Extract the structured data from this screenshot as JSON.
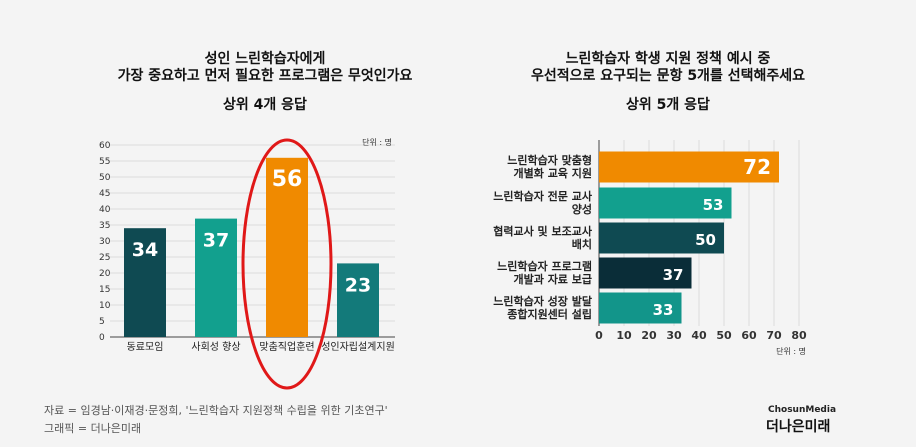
{
  "chart_data": [
    {
      "type": "bar",
      "title": [
        "성인 느린학습자에게",
        "가장 중요하고 먼저 필요한 프로그램은 무엇인가요"
      ],
      "subtitle": "상위 4개 응답",
      "unit_label": "단위 : 명",
      "categories": [
        "동료모임",
        "사회성 향상",
        "맞춤직업훈련",
        "성인자립설계지원"
      ],
      "values": [
        34,
        37,
        56,
        23
      ],
      "colors": [
        "#0f4a52",
        "#12a08e",
        "#f08a00",
        "#137a7a"
      ],
      "highlight": "맞춤직업훈련",
      "ylim": [
        0,
        60
      ],
      "yticks": [
        0,
        5,
        10,
        15,
        20,
        25,
        30,
        35,
        40,
        45,
        50,
        55,
        60
      ],
      "grid": true
    },
    {
      "type": "bar",
      "orientation": "horizontal",
      "title": [
        "느린학습자 학생 지원 정책 예시 중",
        "우선적으로 요구되는 문항 5개를 선택해주세요"
      ],
      "subtitle": "상위 5개 응답",
      "unit_label": "단위 : 명",
      "categories": [
        [
          "느린학습자 맞춤형",
          "개별화 교육 지원"
        ],
        [
          "느린학습자 전문 교사",
          "양성"
        ],
        [
          "협력교사 및 보조교사",
          "배치"
        ],
        [
          "느린학습자 프로그램",
          "개발과 자료 보급"
        ],
        [
          "느린학습자 성장 발달",
          "종합지원센터 설립"
        ]
      ],
      "values": [
        72,
        53,
        50,
        37,
        33
      ],
      "colors": [
        "#f08a00",
        "#12a08e",
        "#0f4a52",
        "#0a2d38",
        "#12958a"
      ],
      "xlim": [
        0,
        80
      ],
      "xticks": [
        0,
        10,
        20,
        30,
        40,
        50,
        60,
        70,
        80
      ],
      "grid": true
    }
  ],
  "footer": {
    "source": "자료 = 임경남·이재경·문정희, '느린학습자 지원정책 수립을 위한 기초연구'",
    "graphic": "그래픽 = 더나은미래"
  },
  "brand": {
    "top": "ChosunMedia",
    "main": "더나은미래"
  }
}
